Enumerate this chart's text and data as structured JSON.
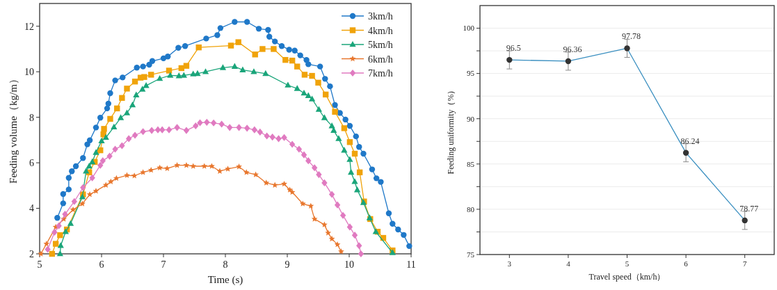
{
  "chart_data": [
    {
      "type": "line",
      "xlabel": "Time (s)",
      "ylabel": "Feeding volume（kg/m）",
      "xlim": [
        5,
        11
      ],
      "xticks": [
        5,
        6,
        7,
        8,
        9,
        10,
        11
      ],
      "ylim": [
        2,
        13
      ],
      "yticks": [
        2,
        4,
        6,
        8,
        10,
        12
      ],
      "legend": "top right",
      "grid": false,
      "series": [
        {
          "name": "3km/h",
          "color": "#1f78c8",
          "marker": "circle",
          "x": [
            5.285,
            5.38,
            5.38,
            5.47,
            5.47,
            5.52,
            5.585,
            5.7,
            5.77,
            5.81,
            5.91,
            5.98,
            6.09,
            6.11,
            6.14,
            6.22,
            6.34,
            6.57,
            6.67,
            6.77,
            6.82,
            7.0,
            7.07,
            7.24,
            7.35,
            7.69,
            7.87,
            7.92,
            8.15,
            8.35,
            8.54,
            8.69,
            8.71,
            8.8,
            8.91,
            9.03,
            9.12,
            9.21,
            9.31,
            9.34,
            9.53,
            9.61,
            9.69,
            9.77,
            9.85,
            9.94,
            10.01,
            10.11,
            10.16,
            10.23,
            10.37,
            10.44,
            10.51,
            10.64,
            10.7,
            10.79,
            10.88,
            10.97
          ],
          "values": [
            3.58,
            4.22,
            4.63,
            4.83,
            5.34,
            5.63,
            5.85,
            6.21,
            6.81,
            6.99,
            7.55,
            7.98,
            8.39,
            8.6,
            9.06,
            9.62,
            9.75,
            10.18,
            10.23,
            10.31,
            10.47,
            10.59,
            10.67,
            11.05,
            11.13,
            11.46,
            11.61,
            11.92,
            12.19,
            12.19,
            11.89,
            11.84,
            11.54,
            11.33,
            11.13,
            10.97,
            10.93,
            10.72,
            10.52,
            10.33,
            10.23,
            9.69,
            9.36,
            8.54,
            8.19,
            7.9,
            7.62,
            7.16,
            6.7,
            6.4,
            5.71,
            5.32,
            5.16,
            3.78,
            3.32,
            3.07,
            2.83,
            2.34
          ]
        },
        {
          "name": "4km/h",
          "color": "#f0a30a",
          "marker": "square",
          "x": [
            5.2,
            5.26,
            5.33,
            5.44,
            5.7,
            5.8,
            5.89,
            5.98,
            6.03,
            6.04,
            6.14,
            6.25,
            6.33,
            6.41,
            6.54,
            6.63,
            6.69,
            6.8,
            7.09,
            7.29,
            7.37,
            7.57,
            8.09,
            8.21,
            8.48,
            8.6,
            8.78,
            8.97,
            9.08,
            9.16,
            9.28,
            9.4,
            9.5,
            9.62,
            9.77,
            9.92,
            10.01,
            10.09,
            10.17,
            10.24,
            10.34,
            10.46,
            10.55,
            10.7
          ],
          "values": [
            2.0,
            2.44,
            2.82,
            3.07,
            4.61,
            5.58,
            6.04,
            6.55,
            7.25,
            7.49,
            7.93,
            8.39,
            8.85,
            9.26,
            9.57,
            9.74,
            9.77,
            9.87,
            10.05,
            10.16,
            10.26,
            11.07,
            11.15,
            11.3,
            10.76,
            11.0,
            11.0,
            10.52,
            10.49,
            10.23,
            9.87,
            9.82,
            9.52,
            9.0,
            8.24,
            7.52,
            6.91,
            6.4,
            5.58,
            4.3,
            3.53,
            2.97,
            2.7,
            2.15
          ]
        },
        {
          "name": "5km/h",
          "color": "#1aa57a",
          "marker": "triangle",
          "x": [
            5.33,
            5.34,
            5.42,
            5.5,
            5.69,
            5.75,
            5.8,
            5.85,
            5.91,
            6.0,
            6.07,
            6.2,
            6.31,
            6.41,
            6.5,
            6.56,
            6.66,
            6.72,
            6.94,
            7.11,
            7.25,
            7.33,
            7.48,
            7.55,
            7.68,
            7.96,
            8.15,
            8.28,
            8.46,
            8.65,
            9.01,
            9.16,
            9.27,
            9.34,
            9.4,
            9.51,
            9.6,
            9.72,
            9.75,
            9.83,
            9.92,
            10.01,
            10.03,
            10.09,
            10.13,
            10.23,
            10.33,
            10.43,
            10.7
          ],
          "values": [
            2.0,
            2.36,
            2.97,
            3.33,
            4.5,
            5.63,
            5.85,
            6.04,
            6.45,
            6.96,
            7.11,
            7.57,
            7.98,
            8.19,
            8.54,
            8.98,
            9.23,
            9.39,
            9.7,
            9.84,
            9.82,
            9.84,
            9.9,
            9.92,
            10.0,
            10.18,
            10.23,
            10.08,
            10.0,
            9.92,
            9.41,
            9.26,
            9.06,
            8.95,
            8.8,
            8.34,
            7.98,
            7.62,
            7.42,
            7.06,
            6.55,
            6.14,
            5.58,
            5.17,
            4.81,
            4.25,
            3.58,
            2.97,
            2.05
          ]
        },
        {
          "name": "6km/h",
          "color": "#e8772e",
          "marker": "star",
          "x": [
            5.02,
            5.11,
            5.26,
            5.39,
            5.54,
            5.69,
            5.81,
            5.91,
            6.07,
            6.15,
            6.24,
            6.41,
            6.53,
            6.67,
            6.8,
            6.94,
            7.06,
            7.22,
            7.37,
            7.48,
            7.66,
            7.78,
            7.91,
            8.04,
            8.22,
            8.34,
            8.49,
            8.66,
            8.8,
            8.95,
            9.04,
            9.08,
            9.25,
            9.38,
            9.44,
            9.6,
            9.66,
            9.72,
            9.81,
            9.87
          ],
          "values": [
            2.0,
            2.44,
            3.18,
            3.53,
            3.94,
            4.2,
            4.61,
            4.76,
            5.02,
            5.17,
            5.32,
            5.45,
            5.43,
            5.58,
            5.68,
            5.78,
            5.75,
            5.89,
            5.89,
            5.85,
            5.85,
            5.85,
            5.63,
            5.73,
            5.83,
            5.58,
            5.48,
            5.12,
            5.02,
            5.07,
            4.81,
            4.71,
            4.2,
            4.1,
            3.53,
            3.28,
            2.92,
            2.66,
            2.41,
            2.1
          ]
        },
        {
          "name": "7km/h",
          "color": "#e07ac0",
          "marker": "diamond",
          "x": [
            5.13,
            5.24,
            5.31,
            5.41,
            5.56,
            5.7,
            5.85,
            5.98,
            6.02,
            6.13,
            6.22,
            6.33,
            6.44,
            6.54,
            6.67,
            6.81,
            6.91,
            6.98,
            7.09,
            7.22,
            7.37,
            7.52,
            7.59,
            7.7,
            7.81,
            7.94,
            8.07,
            8.22,
            8.35,
            8.47,
            8.56,
            8.67,
            8.76,
            8.86,
            8.95,
            9.08,
            9.19,
            9.27,
            9.34,
            9.44,
            9.51,
            9.6,
            9.72,
            9.81,
            9.9,
            10.01,
            10.09,
            10.16,
            10.19
          ],
          "values": [
            2.2,
            2.95,
            3.23,
            3.74,
            4.3,
            4.91,
            5.34,
            5.89,
            6.09,
            6.29,
            6.6,
            6.75,
            7.06,
            7.21,
            7.37,
            7.42,
            7.45,
            7.45,
            7.45,
            7.55,
            7.42,
            7.62,
            7.76,
            7.78,
            7.75,
            7.7,
            7.55,
            7.55,
            7.52,
            7.45,
            7.35,
            7.18,
            7.13,
            7.06,
            7.11,
            6.81,
            6.6,
            6.35,
            6.09,
            5.78,
            5.48,
            5.12,
            4.61,
            4.15,
            3.69,
            3.18,
            2.82,
            2.36,
            2.0
          ]
        }
      ]
    },
    {
      "type": "line",
      "xlabel": "Travel speed（km/h）",
      "ylabel": "Feeding uniformity（%）",
      "x": [
        3,
        4,
        5,
        6,
        7
      ],
      "xlim": [
        2.5,
        7.5
      ],
      "xticks": [
        3,
        4,
        5,
        6,
        7
      ],
      "ylim": [
        75,
        102.5
      ],
      "yticks": [
        75,
        {
          "value": 77.5,
          "label": null
        },
        80,
        {
          "value": 82.5,
          "label": null
        },
        85,
        {
          "value": 87.5,
          "label": null
        },
        90,
        {
          "value": 92.5,
          "label": null
        },
        95,
        {
          "value": 97.5,
          "label": null
        },
        100
      ],
      "grid": "y",
      "data_labels": true,
      "marker": "circle",
      "series": [
        {
          "color": "#3a8fc0",
          "values": [
            96.5,
            96.36,
            97.78,
            86.24,
            78.77
          ],
          "errors": [
            1,
            1,
            1,
            1,
            1
          ]
        }
      ]
    }
  ]
}
